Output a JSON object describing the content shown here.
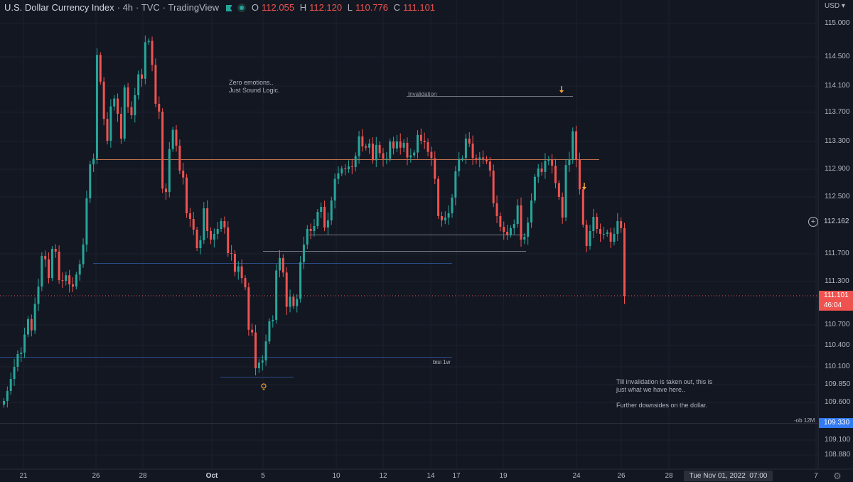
{
  "header": {
    "title": "U.S. Dollar Currency Index",
    "interval": "4h",
    "source": "TVC",
    "platform": "TradingView",
    "o_label": "O",
    "o_value": "112.055",
    "h_label": "H",
    "h_value": "112.120",
    "l_label": "L",
    "l_value": "110.776",
    "c_label": "C",
    "c_value": "111.101"
  },
  "currency": "USD",
  "colors": {
    "up": "#26a69a",
    "down": "#ef5350",
    "background": "#131722",
    "orange_line": "#c0714f",
    "blue_line": "#2b4c87",
    "price_tag": "#ef5350",
    "ob_tag": "#3179f5"
  },
  "annotations": {
    "note1_line1": "Zero emotions..",
    "note1_line2": "Just Sound Logic.",
    "invalidation": "Invalidation",
    "bisi": "bisi 1w",
    "note2_line1": "Till invalidation is taken out, this is",
    "note2_line2": "just what we have here..",
    "note2_line3": "Further downsides on the dollar.",
    "ob": "-ob 12M"
  },
  "price_tags": {
    "crosshair": "112.162",
    "last_price": "111.101",
    "countdown": "46:04",
    "ob_price": "109.330"
  },
  "time_box": {
    "date": "Tue Nov 01, 2022",
    "time": "07:00"
  },
  "chart_data": {
    "type": "candlestick",
    "title": "U.S. Dollar Currency Index",
    "interval": "4h",
    "y_ticks": [
      "115.000",
      "114.500",
      "114.100",
      "113.700",
      "113.300",
      "112.900",
      "112.500",
      "111.700",
      "111.300",
      "110.700",
      "110.400",
      "110.100",
      "109.850",
      "109.600",
      "109.100",
      "108.880"
    ],
    "x_ticks": [
      "21",
      "26",
      "28",
      "Oct",
      "5",
      "10",
      "12",
      "14",
      "17",
      "19",
      "24",
      "26",
      "28",
      "7"
    ],
    "horizontal_levels": [
      {
        "label": "Invalidation",
        "price": 113.95
      },
      {
        "label": "",
        "price": 113.04
      },
      {
        "label": "",
        "price": 111.57
      },
      {
        "label": "bisi 1w",
        "price": 110.24
      },
      {
        "label": "",
        "price": 109.96
      },
      {
        "label": "",
        "price": 111.97
      },
      {
        "label": "",
        "price": 111.74
      },
      {
        "label": "-ob 12M",
        "price": 109.33
      }
    ],
    "candles_close": [
      109.62,
      109.76,
      109.93,
      110.1,
      110.28,
      110.3,
      110.56,
      110.78,
      110.62,
      110.99,
      111.23,
      111.67,
      111.62,
      111.35,
      111.77,
      111.73,
      111.32,
      111.31,
      111.39,
      111.26,
      111.23,
      111.4,
      111.55,
      111.83,
      112.48,
      112.97,
      113.05,
      114.53,
      114.16,
      113.61,
      113.31,
      113.79,
      113.91,
      113.68,
      113.34,
      114.08,
      113.78,
      113.66,
      113.96,
      114.26,
      114.2,
      114.72,
      114.74,
      114.39,
      113.83,
      113.71,
      112.62,
      112.57,
      113.19,
      113.46,
      113.24,
      112.88,
      112.78,
      112.27,
      112.19,
      112.04,
      111.78,
      111.89,
      112.34,
      112.02,
      111.9,
      111.98,
      112.05,
      112.16,
      112.07,
      111.71,
      111.7,
      111.44,
      111.52,
      111.35,
      111.22,
      110.63,
      110.59,
      110.08,
      110.16,
      110.19,
      110.46,
      110.75,
      110.77,
      111.46,
      111.64,
      111.43,
      110.95,
      111.09,
      110.96,
      111.06,
      111.58,
      111.83,
      112.05,
      112.02,
      112.09,
      112.29,
      112.36,
      112.07,
      112.17,
      112.45,
      112.76,
      112.84,
      112.91,
      112.9,
      112.94,
      112.93,
      113.09,
      113.37,
      113.23,
      113.21,
      113.27,
      113.03,
      113.25,
      113.13,
      113.05,
      113.05,
      113.3,
      113.2,
      113.3,
      113.21,
      113.28,
      113.07,
      113.1,
      113.14,
      113.39,
      113.31,
      113.29,
      113.15,
      113.06,
      112.76,
      112.23,
      112.17,
      112.21,
      112.27,
      112.49,
      112.87,
      113.05,
      113.06,
      113.34,
      113.27,
      113.06,
      113.04,
      113.07,
      113.05,
      113.01,
      112.88,
      112.41,
      112.23,
      112.08,
      112.01,
      111.97,
      112.06,
      112.12,
      112.38,
      111.9,
      111.94,
      112.14,
      112.45,
      112.79,
      112.91,
      112.86,
      113.02,
      113.04,
      112.95,
      112.7,
      112.5,
      112.21,
      112.96,
      113.04,
      113.44,
      113.04,
      112.61,
      112.11,
      111.81,
      112.02,
      112.22,
      112.05,
      111.98,
      111.98,
      112.0,
      111.87,
      111.98,
      112.16,
      112.06,
      111.1
    ]
  }
}
